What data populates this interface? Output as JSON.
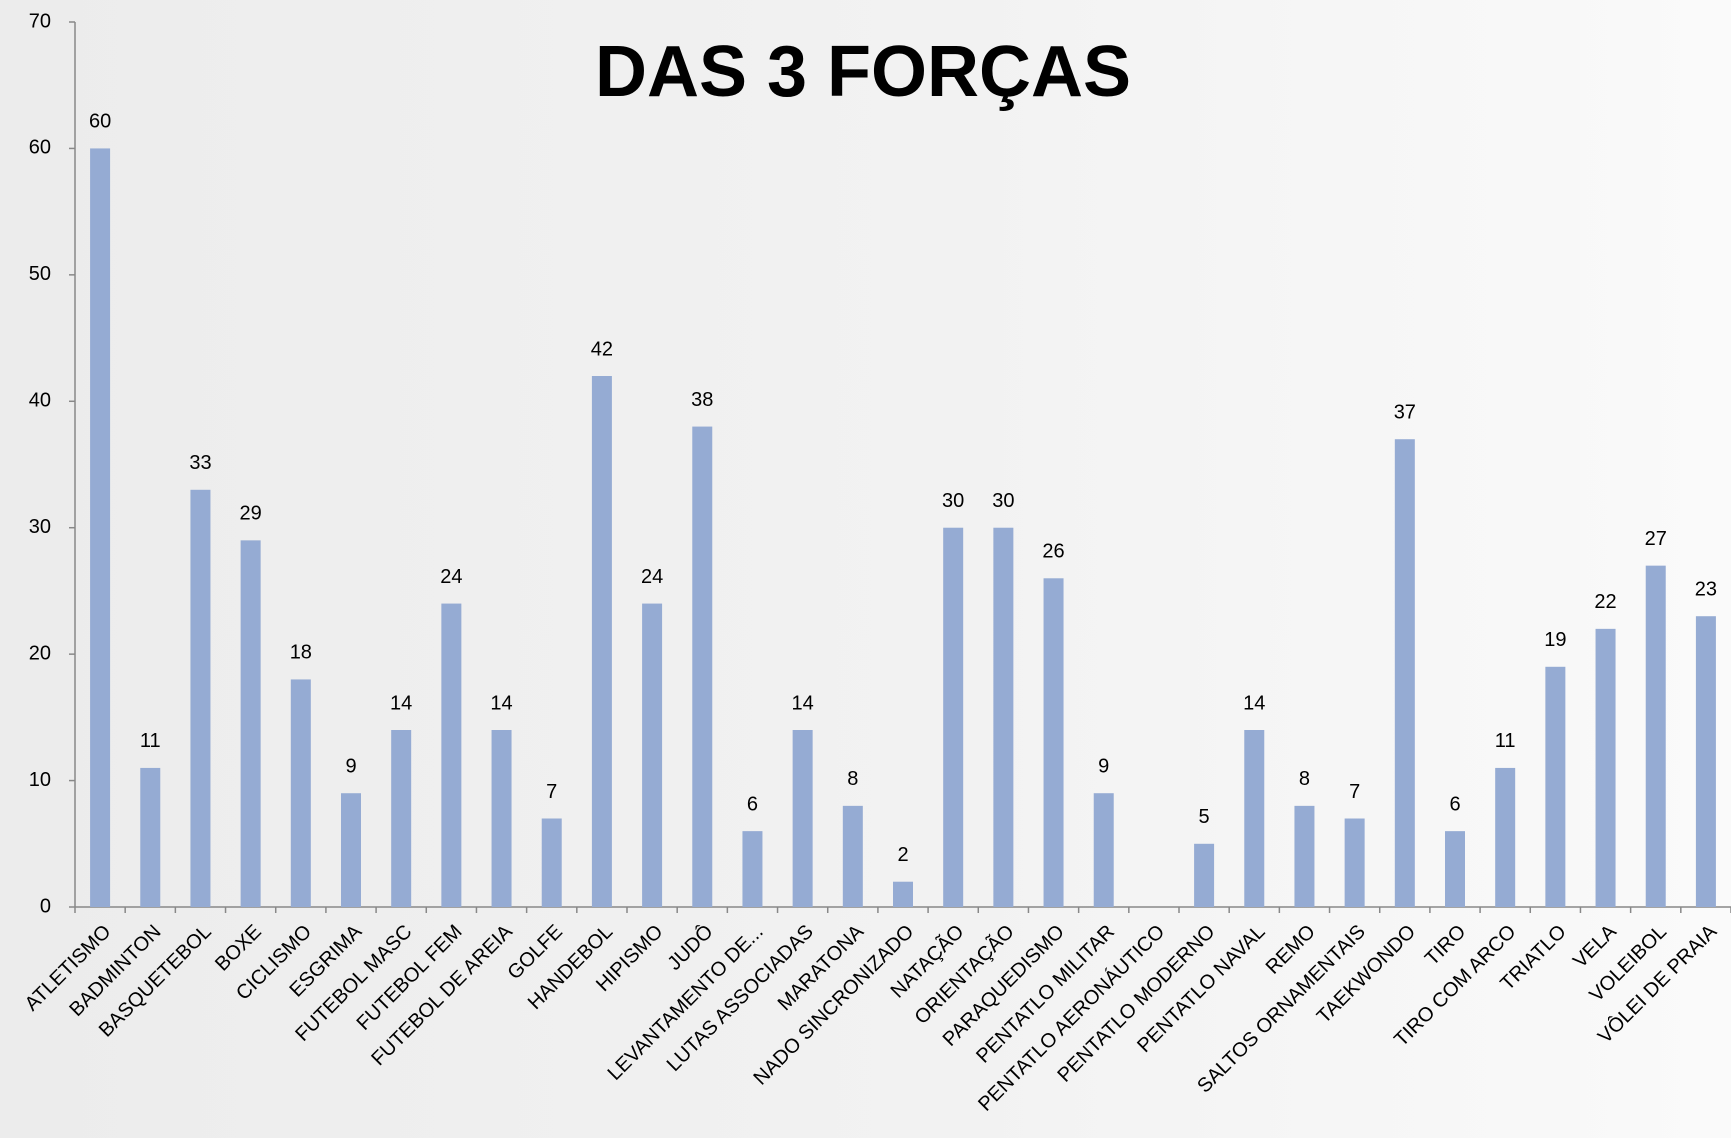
{
  "chart_data": {
    "type": "bar",
    "title": "DAS 3 FORÇAS",
    "categories": [
      "ATLETISMO",
      "BADMINTON",
      "BASQUETEBOL",
      "BOXE",
      "CICLISMO",
      "ESGRIMA",
      "FUTEBOL MASC",
      "FUTEBOL FEM",
      "FUTEBOL DE AREIA",
      "GOLFE",
      "HANDEBOL",
      "HIPISMO",
      "JUDÔ",
      "LEVANTAMENTO DE...",
      "LUTAS ASSOCIADAS",
      "MARATONA",
      "NADO SINCRONIZADO",
      "NATAÇÃO",
      "ORIENTAÇÃO",
      "PARAQUEDISMO",
      "PENTATLO MILITAR",
      "PENTATLO AERONÁUTICO",
      "PENTATLO MODERNO",
      "PENTATLO NAVAL",
      "REMO",
      "SALTOS ORNAMENTAIS",
      "TAEKWONDO",
      "TIRO",
      "TIRO COM ARCO",
      "TRIATLO",
      "VELA",
      "VOLEIBOL",
      "VÔLEI DE PRAIA"
    ],
    "values": [
      60,
      11,
      33,
      29,
      18,
      9,
      14,
      24,
      14,
      7,
      42,
      24,
      38,
      6,
      14,
      8,
      2,
      30,
      30,
      26,
      9,
      null,
      5,
      14,
      8,
      7,
      37,
      6,
      11,
      19,
      22,
      27,
      23
    ],
    "color": "#95abd3",
    "ylim": [
      0,
      70
    ],
    "yticks": [
      0,
      10,
      20,
      30,
      40,
      50,
      60,
      70
    ]
  }
}
